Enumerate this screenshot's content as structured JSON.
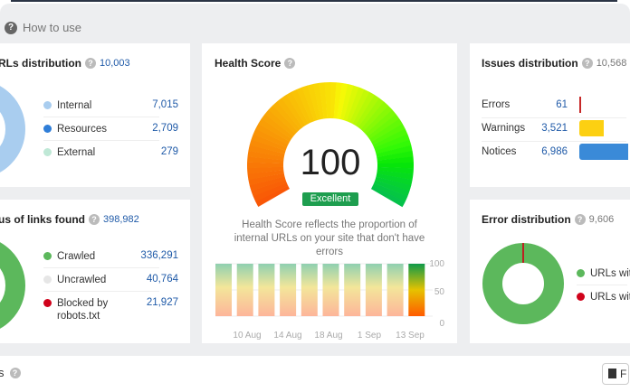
{
  "header": {
    "how_to_use": "How to use"
  },
  "urls_distribution": {
    "title": "RLs distribution",
    "total": "10,003",
    "items": [
      {
        "label": "Internal",
        "value": "7,015",
        "color": "#a9cdef"
      },
      {
        "label": "Resources",
        "value": "2,709",
        "color": "#2f7ed8"
      },
      {
        "label": "External",
        "value": "279",
        "color": "#bfe8d6"
      }
    ]
  },
  "links_status": {
    "title": "us of links found",
    "total": "398,982",
    "items": [
      {
        "label": "Crawled",
        "value": "336,291",
        "color": "#5cb85c"
      },
      {
        "label": "Uncrawled",
        "value": "40,764",
        "color": "#e6e6e6"
      },
      {
        "label": "Blocked by robots.txt",
        "value": "21,927",
        "color": "#d0021b"
      }
    ]
  },
  "health_score": {
    "title": "Health Score",
    "score": "100",
    "badge": "Excellent",
    "badge_color": "#1e9e4f",
    "description": "Health Score reflects the proportion of internal URLs on your site that don't have errors",
    "chart_data": {
      "type": "bar",
      "values": [
        100,
        100,
        100,
        100,
        100,
        100,
        100,
        100,
        100,
        100
      ],
      "x_tick_labels": [
        "10 Aug",
        "14 Aug",
        "18 Aug",
        "1 Sep",
        "13 Sep"
      ],
      "y_tick_labels": [
        "100",
        "50",
        "0"
      ],
      "ylim": [
        0,
        100
      ]
    }
  },
  "issues_distribution": {
    "title": "Issues distribution",
    "total": "10,568",
    "items": [
      {
        "label": "Errors",
        "value": "61",
        "count": 61,
        "color": "#c62828"
      },
      {
        "label": "Warnings",
        "value": "3,521",
        "count": 3521,
        "color": "#fcd012"
      },
      {
        "label": "Notices",
        "value": "6,986",
        "count": 6986,
        "color": "#3a8ad8"
      }
    ]
  },
  "error_distribution": {
    "title": "Error distribution",
    "total": "9,606",
    "items": [
      {
        "label": "URLs wit",
        "color": "#5cb85c"
      },
      {
        "label": "URLs wit",
        "color": "#d0021b"
      }
    ]
  },
  "footer": {
    "label": "s",
    "export_label": "F"
  }
}
